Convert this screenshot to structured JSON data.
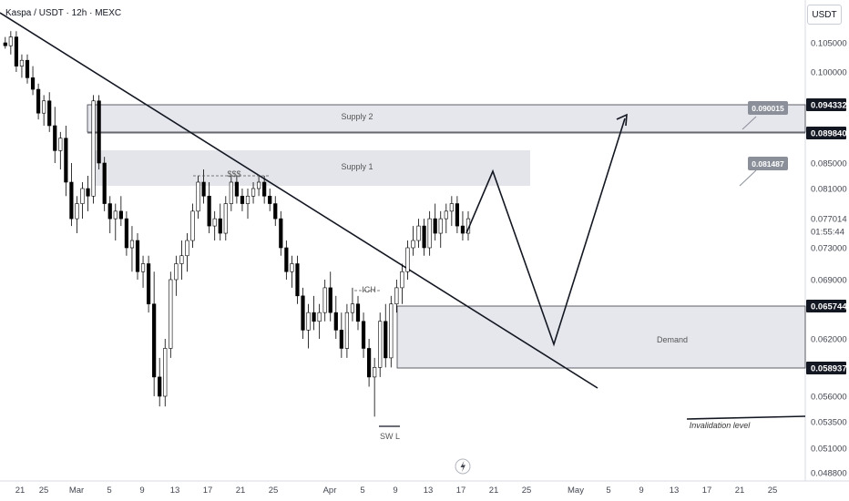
{
  "header": {
    "title": "Kaspa / USDT · 12h · MEXC",
    "currency": "USDT"
  },
  "colors": {
    "up": "#ffffff",
    "down": "#000000",
    "wick": "#000000",
    "zone_fill": "#d1d4dc",
    "label_bg": "#8a8f99"
  },
  "icons": {
    "bottom_button": "lightning-icon"
  },
  "chart_data": {
    "type": "candlestick",
    "x_ticks": [
      "21",
      "25",
      "Mar",
      "5",
      "9",
      "13",
      "17",
      "21",
      "25",
      "Apr",
      "5",
      "9",
      "13",
      "17",
      "21",
      "25",
      "May",
      "5",
      "9",
      "13",
      "17",
      "21",
      "25"
    ],
    "y_ticks": [
      "0.105000",
      "0.100000",
      "0.085000",
      "0.081000",
      "0.073000",
      "0.069000",
      "0.062000",
      "0.056000",
      "0.053500",
      "0.051000",
      "0.048800"
    ],
    "price_labels": [
      {
        "value": "0.094332",
        "style": "boxed"
      },
      {
        "value": "0.089840",
        "style": "boxed"
      },
      {
        "value": "0.065744",
        "style": "boxed"
      },
      {
        "value": "0.058937",
        "style": "boxed"
      },
      {
        "value": "0.077014",
        "style": "plain"
      },
      {
        "value": "01:55:44",
        "style": "plain"
      }
    ],
    "floating_labels": [
      "0.090015",
      "0.081487"
    ],
    "zones": [
      {
        "name": "Supply 2"
      },
      {
        "name": "Supply 1"
      },
      {
        "name": "Demand"
      }
    ],
    "annotations": [
      "$$$",
      "ICH",
      "SW L",
      "Invalidation level"
    ],
    "candles": [
      [
        0.105,
        0.106,
        0.104,
        0.1045
      ],
      [
        0.1045,
        0.107,
        0.103,
        0.106
      ],
      [
        0.106,
        0.107,
        0.1,
        0.101
      ],
      [
        0.101,
        0.103,
        0.099,
        0.102
      ],
      [
        0.102,
        0.103,
        0.098,
        0.099
      ],
      [
        0.099,
        0.101,
        0.096,
        0.097
      ],
      [
        0.097,
        0.098,
        0.092,
        0.093
      ],
      [
        0.093,
        0.096,
        0.091,
        0.095
      ],
      [
        0.095,
        0.0965,
        0.09,
        0.091
      ],
      [
        0.091,
        0.094,
        0.085,
        0.087
      ],
      [
        0.087,
        0.09,
        0.084,
        0.089
      ],
      [
        0.089,
        0.091,
        0.08,
        0.082
      ],
      [
        0.082,
        0.085,
        0.076,
        0.077
      ],
      [
        0.077,
        0.08,
        0.075,
        0.079
      ],
      [
        0.079,
        0.082,
        0.077,
        0.081
      ],
      [
        0.081,
        0.083,
        0.078,
        0.08
      ],
      [
        0.08,
        0.096,
        0.079,
        0.095
      ],
      [
        0.095,
        0.096,
        0.084,
        0.085
      ],
      [
        0.085,
        0.086,
        0.078,
        0.079
      ],
      [
        0.079,
        0.08,
        0.075,
        0.077
      ],
      [
        0.077,
        0.079,
        0.074,
        0.078
      ],
      [
        0.078,
        0.08,
        0.076,
        0.077
      ],
      [
        0.077,
        0.078,
        0.072,
        0.073
      ],
      [
        0.073,
        0.076,
        0.07,
        0.074
      ],
      [
        0.074,
        0.075,
        0.069,
        0.07
      ],
      [
        0.07,
        0.072,
        0.068,
        0.071
      ],
      [
        0.071,
        0.072,
        0.065,
        0.066
      ],
      [
        0.066,
        0.07,
        0.056,
        0.058
      ],
      [
        0.058,
        0.06,
        0.055,
        0.056
      ],
      [
        0.056,
        0.062,
        0.055,
        0.061
      ],
      [
        0.061,
        0.07,
        0.06,
        0.069
      ],
      [
        0.069,
        0.072,
        0.067,
        0.071
      ],
      [
        0.071,
        0.074,
        0.069,
        0.072
      ],
      [
        0.072,
        0.075,
        0.07,
        0.074
      ],
      [
        0.074,
        0.079,
        0.073,
        0.078
      ],
      [
        0.078,
        0.083,
        0.077,
        0.082
      ],
      [
        0.082,
        0.084,
        0.079,
        0.08
      ],
      [
        0.08,
        0.082,
        0.075,
        0.076
      ],
      [
        0.076,
        0.078,
        0.074,
        0.077
      ],
      [
        0.077,
        0.079,
        0.074,
        0.075
      ],
      [
        0.075,
        0.08,
        0.074,
        0.079
      ],
      [
        0.079,
        0.083,
        0.078,
        0.082
      ],
      [
        0.082,
        0.083,
        0.079,
        0.08
      ],
      [
        0.08,
        0.081,
        0.078,
        0.079
      ],
      [
        0.079,
        0.081,
        0.077,
        0.08
      ],
      [
        0.08,
        0.082,
        0.079,
        0.081
      ],
      [
        0.081,
        0.083,
        0.08,
        0.082
      ],
      [
        0.082,
        0.083,
        0.079,
        0.08
      ],
      [
        0.08,
        0.081,
        0.078,
        0.079
      ],
      [
        0.079,
        0.08,
        0.076,
        0.077
      ],
      [
        0.077,
        0.078,
        0.072,
        0.073
      ],
      [
        0.073,
        0.074,
        0.069,
        0.07
      ],
      [
        0.07,
        0.072,
        0.068,
        0.071
      ],
      [
        0.071,
        0.072,
        0.066,
        0.067
      ],
      [
        0.067,
        0.068,
        0.062,
        0.063
      ],
      [
        0.063,
        0.066,
        0.061,
        0.065
      ],
      [
        0.065,
        0.067,
        0.063,
        0.064
      ],
      [
        0.064,
        0.066,
        0.062,
        0.065
      ],
      [
        0.065,
        0.069,
        0.064,
        0.068
      ],
      [
        0.068,
        0.07,
        0.064,
        0.065
      ],
      [
        0.065,
        0.067,
        0.062,
        0.063
      ],
      [
        0.063,
        0.065,
        0.06,
        0.061
      ],
      [
        0.061,
        0.066,
        0.06,
        0.065
      ],
      [
        0.065,
        0.068,
        0.064,
        0.066
      ],
      [
        0.066,
        0.067,
        0.063,
        0.064
      ],
      [
        0.064,
        0.065,
        0.06,
        0.061
      ],
      [
        0.061,
        0.062,
        0.057,
        0.058
      ],
      [
        0.058,
        0.06,
        0.054,
        0.059
      ],
      [
        0.059,
        0.065,
        0.058,
        0.064
      ],
      [
        0.064,
        0.066,
        0.059,
        0.06
      ],
      [
        0.06,
        0.067,
        0.059,
        0.066
      ],
      [
        0.066,
        0.069,
        0.065,
        0.068
      ],
      [
        0.068,
        0.071,
        0.066,
        0.07
      ],
      [
        0.07,
        0.074,
        0.069,
        0.073
      ],
      [
        0.073,
        0.076,
        0.072,
        0.074
      ],
      [
        0.074,
        0.077,
        0.073,
        0.076
      ],
      [
        0.076,
        0.077,
        0.072,
        0.073
      ],
      [
        0.073,
        0.078,
        0.072,
        0.077
      ],
      [
        0.077,
        0.079,
        0.074,
        0.075
      ],
      [
        0.075,
        0.078,
        0.073,
        0.077
      ],
      [
        0.077,
        0.079,
        0.075,
        0.078
      ],
      [
        0.078,
        0.08,
        0.076,
        0.079
      ],
      [
        0.079,
        0.08,
        0.075,
        0.076
      ],
      [
        0.076,
        0.078,
        0.074,
        0.075
      ],
      [
        0.075,
        0.078,
        0.074,
        0.077
      ]
    ]
  }
}
